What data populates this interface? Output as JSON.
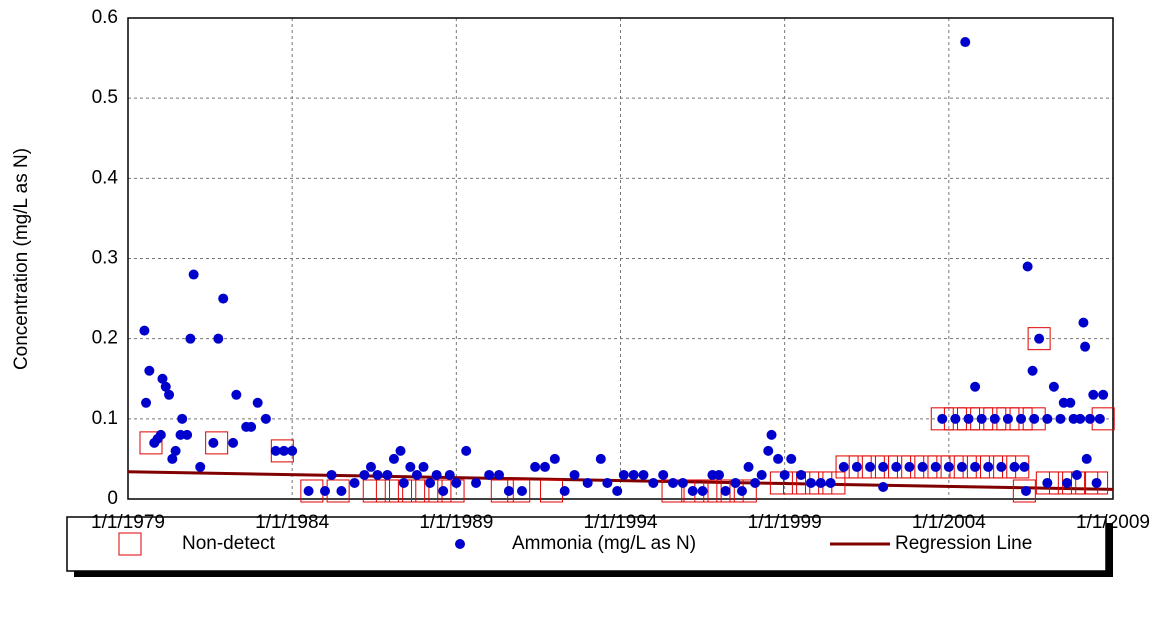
{
  "chart_data": {
    "type": "scatter",
    "y_label": "Concentration (mg/L as N)",
    "xlim": [
      1979,
      2009
    ],
    "ylim": [
      0,
      0.6
    ],
    "xticks": [
      {
        "value": 1979,
        "label": "1/1/1979"
      },
      {
        "value": 1984,
        "label": "1/1/1984"
      },
      {
        "value": 1989,
        "label": "1/1/1989"
      },
      {
        "value": 1994,
        "label": "1/1/1994"
      },
      {
        "value": 1999,
        "label": "1/1/1999"
      },
      {
        "value": 2004,
        "label": "1/1/2004"
      },
      {
        "value": 2009,
        "label": "1/1/2009"
      }
    ],
    "yticks": [
      0,
      0.1,
      0.2,
      0.3,
      0.4,
      0.5,
      0.6
    ],
    "grid": true,
    "legend": "bottom",
    "series": [
      {
        "name": "Non-detect",
        "color": "#e00000",
        "marker": "square",
        "x": [
          1979.7,
          1981.7,
          1983.7,
          1984.6,
          1985.4,
          1986.5,
          1986.9,
          1987.3,
          1987.7,
          1988.1,
          1988.5,
          1988.9,
          1990.4,
          1990.9,
          1991.9,
          1995.6,
          1996.2,
          1996.6,
          1997.0,
          1997.4,
          1997.8,
          1998.9,
          1999.3,
          1999.7,
          2000.1,
          2000.5,
          2000.9,
          2001.3,
          2001.7,
          2002.1,
          2002.5,
          2002.9,
          2003.3,
          2003.7,
          2004.1,
          2004.5,
          2004.9,
          2005.3,
          2005.7,
          2006.1,
          2003.8,
          2004.2,
          2004.6,
          2005.0,
          2005.4,
          2005.8,
          2006.2,
          2006.6,
          2006.3,
          2006.75,
          2007.0,
          2007.4,
          2007.8,
          2008.2,
          2008.5,
          2008.7
        ],
        "values": [
          0.07,
          0.07,
          0.06,
          0.01,
          0.01,
          0.01,
          0.01,
          0.01,
          0.01,
          0.01,
          0.01,
          0.01,
          0.01,
          0.01,
          0.01,
          0.01,
          0.01,
          0.01,
          0.01,
          0.01,
          0.01,
          0.02,
          0.02,
          0.02,
          0.02,
          0.02,
          0.04,
          0.04,
          0.04,
          0.04,
          0.04,
          0.04,
          0.04,
          0.04,
          0.04,
          0.04,
          0.04,
          0.04,
          0.04,
          0.04,
          0.1,
          0.1,
          0.1,
          0.1,
          0.1,
          0.1,
          0.1,
          0.1,
          0.01,
          0.2,
          0.02,
          0.02,
          0.02,
          0.02,
          0.02,
          0.1
        ]
      },
      {
        "name": "Ammonia (mg/L as N)",
        "color": "#0000cc",
        "marker": "circle",
        "x": [
          1979.5,
          1979.55,
          1979.65,
          1979.8,
          1979.9,
          1980.0,
          1980.05,
          1980.15,
          1980.25,
          1980.35,
          1980.45,
          1980.6,
          1980.65,
          1980.8,
          1980.9,
          1981.0,
          1981.2,
          1981.6,
          1981.75,
          1981.9,
          1982.2,
          1982.3,
          1982.6,
          1982.75,
          1982.95,
          1983.2,
          1983.5,
          1983.75,
          1984.0,
          1984.5,
          1985.0,
          1985.2,
          1985.5,
          1985.9,
          1986.2,
          1986.4,
          1986.6,
          1986.9,
          1987.1,
          1987.3,
          1987.4,
          1987.6,
          1987.8,
          1988.0,
          1988.2,
          1988.4,
          1988.6,
          1988.8,
          1989.0,
          1989.3,
          1989.6,
          1990.0,
          1990.3,
          1990.6,
          1991.0,
          1991.4,
          1991.7,
          1992.0,
          1992.3,
          1992.6,
          1993.0,
          1993.4,
          1993.6,
          1993.9,
          1994.1,
          1994.4,
          1994.7,
          1995.0,
          1995.3,
          1995.6,
          1995.9,
          1996.2,
          1996.5,
          1996.8,
          1997.0,
          1997.2,
          1997.5,
          1997.7,
          1997.9,
          1998.1,
          1998.3,
          1998.5,
          1998.6,
          1998.8,
          1999.0,
          1999.2,
          1999.5,
          1999.8,
          2000.1,
          2000.4,
          2000.8,
          2001.2,
          2001.6,
          2002.0,
          2002.0,
          2002.4,
          2002.8,
          2003.2,
          2003.6,
          2003.8,
          2004.0,
          2004.2,
          2004.4,
          2004.5,
          2004.6,
          2004.8,
          2004.8,
          2005.0,
          2005.2,
          2005.4,
          2005.6,
          2005.8,
          2006.0,
          2006.2,
          2006.3,
          2006.35,
          2006.4,
          2006.55,
          2006.6,
          2006.75,
          2007.0,
          2007.0,
          2007.2,
          2007.4,
          2007.5,
          2007.6,
          2007.7,
          2007.8,
          2007.9,
          2008.0,
          2008.1,
          2008.15,
          2008.2,
          2008.3,
          2008.4,
          2008.5,
          2008.6,
          2008.7
        ],
        "values": [
          0.21,
          0.12,
          0.16,
          0.07,
          0.075,
          0.08,
          0.15,
          0.14,
          0.13,
          0.05,
          0.06,
          0.08,
          0.1,
          0.08,
          0.2,
          0.28,
          0.04,
          0.07,
          0.2,
          0.25,
          0.07,
          0.13,
          0.09,
          0.09,
          0.12,
          0.1,
          0.06,
          0.06,
          0.06,
          0.01,
          0.01,
          0.03,
          0.01,
          0.02,
          0.03,
          0.04,
          0.03,
          0.03,
          0.05,
          0.06,
          0.02,
          0.04,
          0.03,
          0.04,
          0.02,
          0.03,
          0.01,
          0.03,
          0.02,
          0.06,
          0.02,
          0.03,
          0.03,
          0.01,
          0.01,
          0.04,
          0.04,
          0.05,
          0.01,
          0.03,
          0.02,
          0.05,
          0.02,
          0.01,
          0.03,
          0.03,
          0.03,
          0.02,
          0.03,
          0.02,
          0.02,
          0.01,
          0.01,
          0.03,
          0.03,
          0.01,
          0.02,
          0.01,
          0.04,
          0.02,
          0.03,
          0.06,
          0.08,
          0.05,
          0.03,
          0.05,
          0.03,
          0.02,
          0.02,
          0.02,
          0.04,
          0.04,
          0.04,
          0.015,
          0.04,
          0.04,
          0.04,
          0.04,
          0.04,
          0.1,
          0.04,
          0.1,
          0.04,
          0.57,
          0.1,
          0.14,
          0.04,
          0.1,
          0.04,
          0.1,
          0.04,
          0.1,
          0.04,
          0.1,
          0.04,
          0.01,
          0.29,
          0.16,
          0.1,
          0.2,
          0.1,
          0.02,
          0.14,
          0.1,
          0.12,
          0.02,
          0.12,
          0.1,
          0.03,
          0.1,
          0.22,
          0.19,
          0.05,
          0.1,
          0.13,
          0.02,
          0.1,
          0.13
        ]
      },
      {
        "name": "Regression Line",
        "color": "#800000",
        "marker": "line",
        "x": [
          1979,
          2009
        ],
        "values": [
          0.034,
          0.012
        ]
      }
    ]
  }
}
